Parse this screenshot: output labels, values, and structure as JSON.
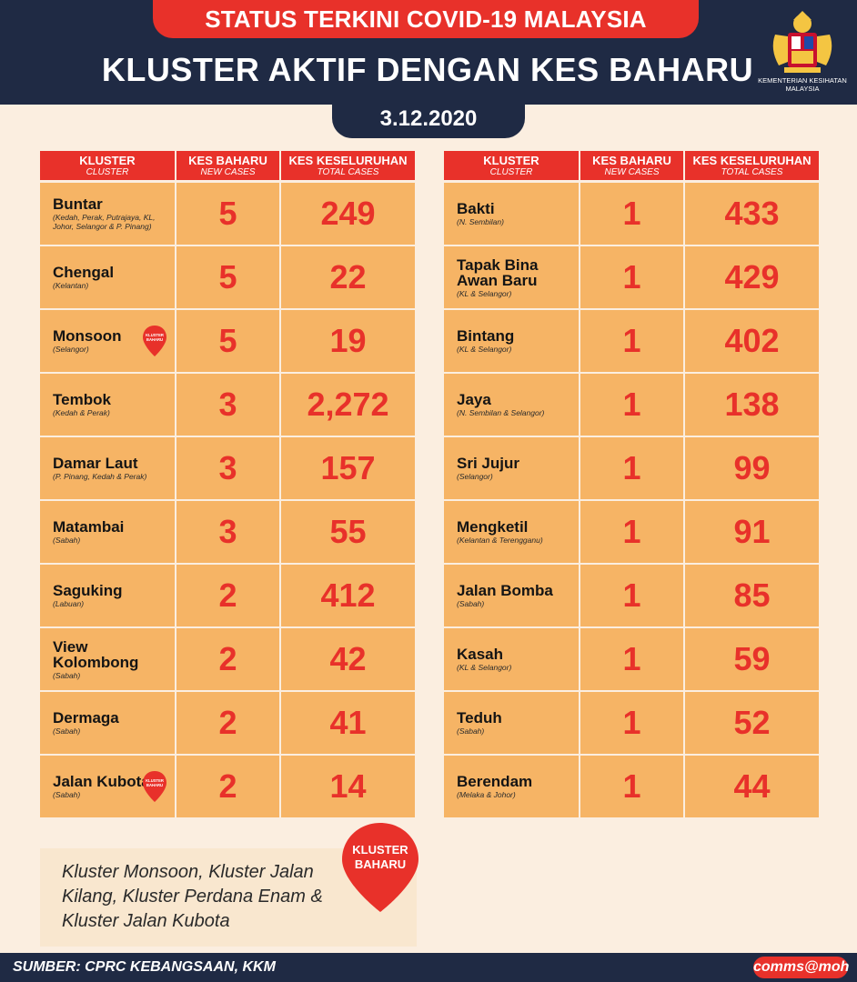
{
  "header": {
    "status_banner": "STATUS TERKINI COVID-19 MALAYSIA",
    "title": "KLUSTER AKTIF DENGAN KES BAHARU",
    "date": "3.12.2020",
    "ministry_line1": "KEMENTERIAN KESIHATAN",
    "ministry_line2": "MALAYSIA"
  },
  "columns": {
    "cluster": "KLUSTER",
    "cluster_en": "CLUSTER",
    "new_cases": "KES BAHARU",
    "new_cases_en": "NEW CASES",
    "total_cases": "KES KESELURUHAN",
    "total_cases_en": "TOTAL CASES"
  },
  "pin_label_line1": "KLUSTER",
  "pin_label_line2": "BAHARU",
  "left_table": [
    {
      "name": "Buntar",
      "location": "(Kedah, Perak, Putrajaya, KL, Johor, Selangor & P. Pinang)",
      "new": "5",
      "total": "249"
    },
    {
      "name": "Chengal",
      "location": "(Kelantan)",
      "new": "5",
      "total": "22"
    },
    {
      "name": "Monsoon",
      "location": "(Selangor)",
      "new": "5",
      "total": "19"
    },
    {
      "name": "Tembok",
      "location": "(Kedah & Perak)",
      "new": "3",
      "total": "2,272"
    },
    {
      "name": "Damar Laut",
      "location": "(P. Pinang, Kedah & Perak)",
      "new": "3",
      "total": "157"
    },
    {
      "name": "Matambai",
      "location": "(Sabah)",
      "new": "3",
      "total": "55"
    },
    {
      "name": "Saguking",
      "location": "(Labuan)",
      "new": "2",
      "total": "412"
    },
    {
      "name": "View Kolombong",
      "location": "(Sabah)",
      "new": "2",
      "total": "42"
    },
    {
      "name": "Dermaga",
      "location": "(Sabah)",
      "new": "2",
      "total": "41"
    },
    {
      "name": "Jalan Kubota",
      "location": "(Sabah)",
      "new": "2",
      "total": "14"
    }
  ],
  "right_table": [
    {
      "name": "Bakti",
      "location": "(N. Sembilan)",
      "new": "1",
      "total": "433"
    },
    {
      "name": "Tapak Bina Awan Baru",
      "location": "(KL & Selangor)",
      "new": "1",
      "total": "429"
    },
    {
      "name": "Bintang",
      "location": "(KL & Selangor)",
      "new": "1",
      "total": "402"
    },
    {
      "name": "Jaya",
      "location": "(N. Sembilan & Selangor)",
      "new": "1",
      "total": "138"
    },
    {
      "name": "Sri Jujur",
      "location": "(Selangor)",
      "new": "1",
      "total": "99"
    },
    {
      "name": "Mengketil",
      "location": "(Kelantan & Terengganu)",
      "new": "1",
      "total": "91"
    },
    {
      "name": "Jalan Bomba",
      "location": "(Sabah)",
      "new": "1",
      "total": "85"
    },
    {
      "name": "Kasah",
      "location": "(KL & Selangor)",
      "new": "1",
      "total": "59"
    },
    {
      "name": "Teduh",
      "location": "(Sabah)",
      "new": "1",
      "total": "52"
    },
    {
      "name": "Berendam",
      "location": "(Melaka & Johor)",
      "new": "1",
      "total": "44"
    }
  ],
  "note": "Kluster Monsoon, Kluster Jalan Kilang, Kluster Perdana Enam & Kluster Jalan Kubota",
  "footer": {
    "source": "SUMBER: CPRC KEBANGSAAN, KKM",
    "handle": "comms@moh"
  },
  "colors": {
    "navy": "#1f2a44",
    "red": "#e8312a",
    "cell_orange": "#f6b465",
    "background": "#fbeee0"
  }
}
